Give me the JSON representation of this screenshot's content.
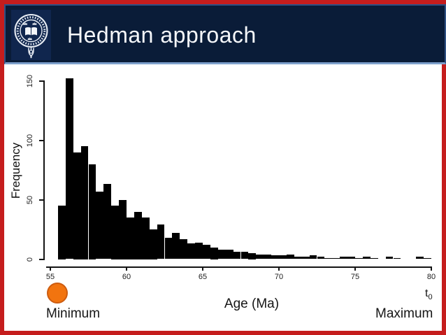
{
  "slide": {
    "title": "Hedman approach",
    "logo": "university-of-oxford-crest",
    "colors": {
      "frame_red": "#c51d1d",
      "header_navy": "#0a1c38",
      "logo_navy": "#10264e",
      "header_border_blue": "#2f5184",
      "header_border_bottom_blue": "#7da0cc",
      "bar_black": "#000000",
      "marker_orange": "#f2740f"
    }
  },
  "chart_data": {
    "type": "bar",
    "title": "",
    "xlabel": "Age (Ma)",
    "ylabel": "Frequency",
    "x_ticks": [
      55,
      60,
      65,
      70,
      75,
      80
    ],
    "y_ticks": [
      0,
      50,
      100,
      150
    ],
    "xlim": [
      55,
      80
    ],
    "ylim": [
      0,
      155
    ],
    "grid": false,
    "legend": "none",
    "bin_width": 0.5,
    "bins": [
      55.5,
      56.0,
      56.5,
      57.0,
      57.5,
      58.0,
      58.5,
      59.0,
      59.5,
      60.0,
      60.5,
      61.0,
      61.5,
      62.0,
      62.5,
      63.0,
      63.5,
      64.0,
      64.5,
      65.0,
      65.5,
      66.0,
      66.5,
      67.0,
      67.5,
      68.0,
      68.5,
      69.0,
      69.5,
      70.0,
      70.5,
      71.0,
      71.5,
      72.0,
      72.5,
      73.0,
      73.5,
      74.0,
      74.5,
      75.0,
      75.5,
      76.0,
      76.5,
      77.0,
      77.5,
      78.0,
      78.5,
      79.0,
      79.5
    ],
    "counts": [
      45,
      152,
      90,
      95,
      80,
      57,
      63,
      45,
      50,
      35,
      40,
      35,
      25,
      29,
      18,
      22,
      17,
      13,
      14,
      12,
      10,
      8,
      8,
      6,
      6,
      5,
      4,
      4,
      3,
      3,
      4,
      2,
      2,
      3,
      2,
      1,
      1,
      2,
      2,
      1,
      2,
      1,
      0,
      2,
      1,
      0,
      0,
      2,
      1
    ]
  },
  "annotations": {
    "minimum": "Minimum",
    "maximum": "Maximum",
    "t_label_base": "t",
    "t_label_sub": "0"
  }
}
